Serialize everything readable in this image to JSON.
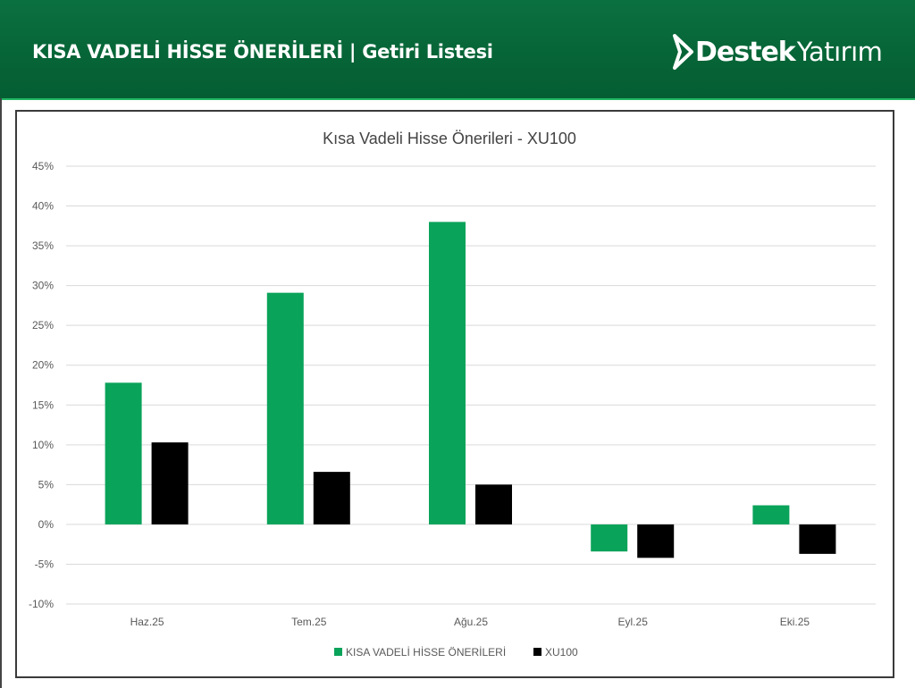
{
  "header": {
    "title": "KISA VADELİ HİSSE ÖNERİLERİ | Getiri Listesi",
    "logo_text": "DestekYatırım"
  },
  "colors": {
    "header_green": "#066436",
    "series_green": "#0aa35a",
    "series_black": "#000000"
  },
  "chart_data": {
    "type": "bar",
    "title": "Kısa Vadeli Hisse Önerileri - XU100",
    "categories": [
      "Haz.25",
      "Tem.25",
      "Ağu.25",
      "Eyl.25",
      "Eki.25"
    ],
    "series": [
      {
        "name": "KISA VADELİ HİSSE ÖNERİLERİ",
        "color": "#0aa35a",
        "values": [
          17.8,
          29.1,
          38.0,
          -3.4,
          2.4
        ]
      },
      {
        "name": "XU100",
        "color": "#000000",
        "values": [
          10.3,
          6.6,
          5.0,
          -4.2,
          -3.7
        ]
      }
    ],
    "ylim": [
      -10,
      45
    ],
    "yticks": [
      "-10%",
      "-5%",
      "0%",
      "5%",
      "10%",
      "15%",
      "20%",
      "25%",
      "30%",
      "35%",
      "40%",
      "45%"
    ],
    "grid": true,
    "legend": "bottom"
  }
}
